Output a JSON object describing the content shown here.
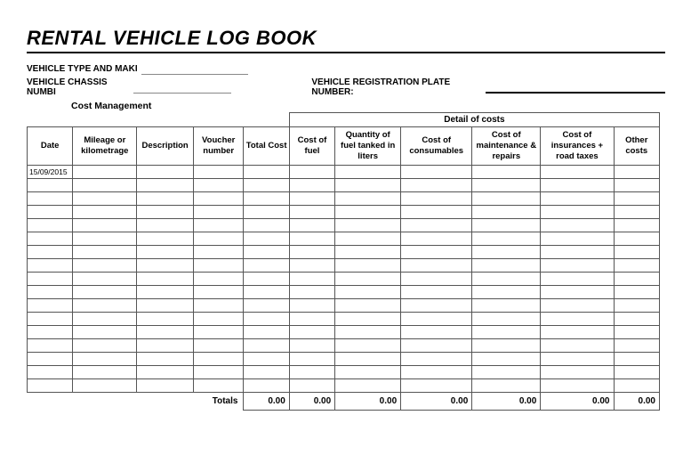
{
  "title": "RENTAL VEHICLE LOG BOOK",
  "labels": {
    "vehicle_type": "VEHICLE TYPE AND MAKI",
    "vehicle_chassis": "VEHICLE CHASSIS NUMBI",
    "vehicle_reg": "VEHICLE REGISTRATION PLATE NUMBER:",
    "cost_mgmt": "Cost Management",
    "detail_of_costs": "Detail of costs",
    "totals": "Totals"
  },
  "columns": {
    "date": "Date",
    "mileage": "Mileage or kilometrage",
    "description": "Description",
    "voucher": "Voucher number",
    "total_cost": "Total Cost",
    "cost_fuel": "Cost of fuel",
    "qty_fuel": "Quantity of fuel tanked in liters",
    "cost_consumables": "Cost of consumables",
    "cost_maint": "Cost of maintenance & repairs",
    "cost_ins": "Cost of insurances + road taxes",
    "other": "Other costs"
  },
  "widths": {
    "date": 50,
    "mileage": 70,
    "description": 62,
    "voucher": 55,
    "total_cost": 50,
    "cost_fuel": 50,
    "qty_fuel": 72,
    "cost_consumables": 78,
    "cost_maint": 75,
    "cost_ins": 80,
    "other": 50
  },
  "first_date": "15/09/2015",
  "empty_rows": 17,
  "totals": {
    "total_cost": "0.00",
    "cost_fuel": "0.00",
    "qty_fuel": "0.00",
    "cost_consumables": "0.00",
    "cost_maint": "0.00",
    "cost_ins": "0.00",
    "other": "0.00"
  },
  "colors": {
    "border": "#555555",
    "text": "#000000",
    "bg": "#ffffff"
  }
}
